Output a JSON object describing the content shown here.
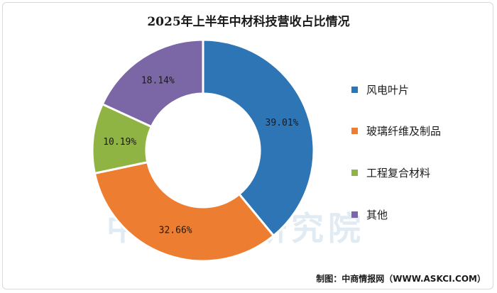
{
  "chart_data": {
    "type": "pie",
    "title": "2025年上半年中材科技营收占比情况",
    "categories": [
      "风电叶片",
      "玻璃纤维及制品",
      "工程复合材料",
      "其他"
    ],
    "values": [
      39.01,
      32.66,
      10.19,
      18.14
    ],
    "value_labels": [
      "39.01%",
      "32.66%",
      "10.19%",
      "18.14%"
    ],
    "colors": [
      "#2e75b6",
      "#ed7d31",
      "#8fb443",
      "#7b67a6"
    ],
    "donut": true,
    "legend_position": "right"
  },
  "source": "制图：中商情报网（WWW.ASKCI.COM）",
  "watermark": "中商产业研究院"
}
